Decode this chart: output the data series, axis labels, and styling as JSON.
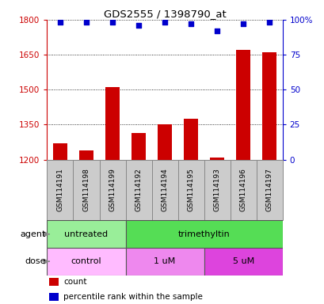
{
  "title": "GDS2555 / 1398790_at",
  "samples": [
    "GSM114191",
    "GSM114198",
    "GSM114199",
    "GSM114192",
    "GSM114194",
    "GSM114195",
    "GSM114193",
    "GSM114196",
    "GSM114197"
  ],
  "bar_values": [
    1270,
    1240,
    1510,
    1315,
    1350,
    1375,
    1210,
    1670,
    1660
  ],
  "percentile_values": [
    98,
    98,
    98,
    96,
    98,
    97,
    92,
    97,
    98
  ],
  "ylim_left": [
    1200,
    1800
  ],
  "ylim_right": [
    0,
    100
  ],
  "yticks_left": [
    1200,
    1350,
    1500,
    1650,
    1800
  ],
  "yticks_right": [
    0,
    25,
    50,
    75,
    100
  ],
  "bar_color": "#cc0000",
  "dot_color": "#0000cc",
  "agent_labels": [
    {
      "text": "untreated",
      "start": 0,
      "end": 3,
      "color": "#99ee99"
    },
    {
      "text": "trimethyltin",
      "start": 3,
      "end": 9,
      "color": "#55dd55"
    }
  ],
  "dose_labels": [
    {
      "text": "control",
      "start": 0,
      "end": 3,
      "color": "#ffbbff"
    },
    {
      "text": "1 uM",
      "start": 3,
      "end": 6,
      "color": "#ee88ee"
    },
    {
      "text": "5 uM",
      "start": 6,
      "end": 9,
      "color": "#dd44dd"
    }
  ],
  "legend_count_color": "#cc0000",
  "legend_percentile_color": "#0000cc",
  "tick_label_color_left": "#cc0000",
  "tick_label_color_right": "#0000cc",
  "background_color": "#ffffff",
  "plot_bg_color": "#ffffff",
  "sample_box_color": "#cccccc",
  "grid_color": "#000000"
}
